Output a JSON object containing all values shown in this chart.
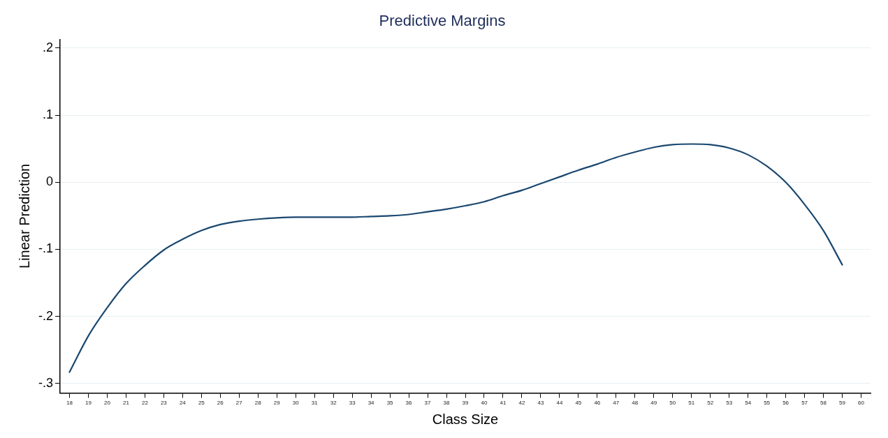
{
  "chart_data": {
    "type": "line",
    "title": "Predictive Margins",
    "xlabel": "Class Size",
    "ylabel": "Linear Prediction",
    "x": [
      18,
      19,
      20,
      21,
      22,
      23,
      24,
      25,
      26,
      27,
      28,
      29,
      30,
      31,
      32,
      33,
      34,
      35,
      36,
      37,
      38,
      39,
      40,
      41,
      42,
      43,
      44,
      45,
      46,
      47,
      48,
      49,
      50,
      51,
      52,
      53,
      54,
      55,
      56,
      57,
      58,
      59
    ],
    "series": [
      {
        "color": "#1a476f",
        "values": [
          -0.283,
          -0.229,
          -0.187,
          -0.151,
          -0.124,
          -0.101,
          -0.085,
          -0.072,
          -0.063,
          -0.058,
          -0.055,
          -0.053,
          -0.052,
          -0.052,
          -0.052,
          -0.052,
          -0.051,
          -0.05,
          -0.048,
          -0.044,
          -0.04,
          -0.035,
          -0.029,
          -0.02,
          -0.012,
          -0.002,
          0.008,
          0.018,
          0.027,
          0.037,
          0.045,
          0.052,
          0.056,
          0.057,
          0.056,
          0.051,
          0.041,
          0.024,
          0.0,
          -0.033,
          -0.072,
          -0.123
        ]
      }
    ],
    "xlim": [
      17.5,
      60.5
    ],
    "xticks": [
      18,
      19,
      20,
      21,
      22,
      23,
      24,
      25,
      26,
      27,
      28,
      29,
      30,
      31,
      32,
      33,
      34,
      35,
      36,
      37,
      38,
      39,
      40,
      41,
      42,
      43,
      44,
      45,
      46,
      47,
      48,
      49,
      50,
      51,
      52,
      53,
      54,
      55,
      56,
      57,
      58,
      59,
      60
    ],
    "ylim": [
      -0.314,
      0.213
    ],
    "yticks": [
      {
        "value": -0.3,
        "label": "-.3"
      },
      {
        "value": -0.2,
        "label": "-.2"
      },
      {
        "value": -0.1,
        "label": "-.1"
      },
      {
        "value": 0,
        "label": "0"
      },
      {
        "value": 0.1,
        "label": ".1"
      },
      {
        "value": 0.2,
        "label": ".2"
      }
    ],
    "grid": "y",
    "marker": "none",
    "line_style": "solid"
  }
}
